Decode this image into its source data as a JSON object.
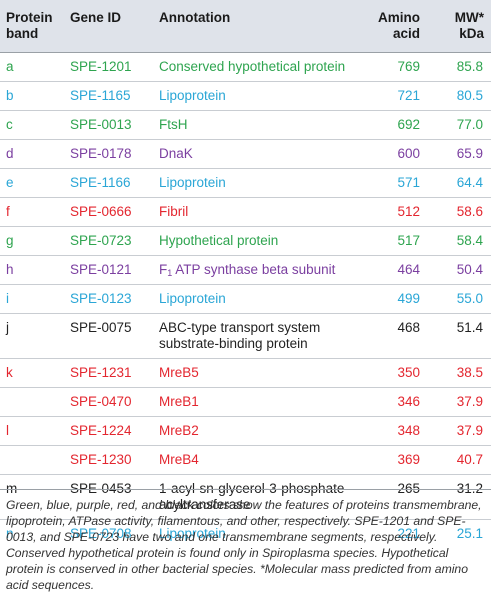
{
  "table": {
    "headers": {
      "band": "Protein band",
      "gene": "Gene ID",
      "annotation": "Annotation",
      "amino": "Amino acid",
      "mw": "MW* kDa"
    },
    "rows": [
      {
        "band": "a",
        "gene": "SPE-1201",
        "annotation": "Conserved hypothetical protein",
        "amino": "769",
        "mw": "85.8",
        "color": "#2ea44f"
      },
      {
        "band": "b",
        "gene": "SPE-1165",
        "annotation": "Lipoprotein",
        "amino": "721",
        "mw": "80.5",
        "color": "#2aa6d6"
      },
      {
        "band": "c",
        "gene": "SPE-0013",
        "annotation": "FtsH",
        "amino": "692",
        "mw": "77.0",
        "color": "#2ea44f"
      },
      {
        "band": "d",
        "gene": "SPE-0178",
        "annotation": "DnaK",
        "amino": "600",
        "mw": "65.9",
        "color": "#7b3fa0"
      },
      {
        "band": "e",
        "gene": "SPE-1166",
        "annotation": "Lipoprotein",
        "amino": "571",
        "mw": "64.4",
        "color": "#2aa6d6"
      },
      {
        "band": "f",
        "gene": "SPE-0666",
        "annotation": "Fibril",
        "amino": "512",
        "mw": "58.6",
        "color": "#e3262f"
      },
      {
        "band": "g",
        "gene": "SPE-0723",
        "annotation": "Hypothetical protein",
        "amino": "517",
        "mw": "58.4",
        "color": "#2ea44f"
      },
      {
        "band": "h",
        "gene": "SPE-0121",
        "annotation_pre": "F",
        "annotation_sub": "1",
        "annotation_post": " ATP synthase beta subunit",
        "amino": "464",
        "mw": "50.4",
        "color": "#7b3fa0"
      },
      {
        "band": "i",
        "gene": "SPE-0123",
        "annotation": "Lipoprotein",
        "amino": "499",
        "mw": "55.0",
        "color": "#2aa6d6"
      },
      {
        "band": "j",
        "gene": "SPE-0075",
        "annotation_line1": "ABC-type transport system",
        "annotation_line2": "substrate-binding protein",
        "amino": "468",
        "mw": "51.4",
        "color": "#222222"
      },
      {
        "band": "k",
        "gene": "SPE-1231",
        "annotation": "MreB5",
        "amino": "350",
        "mw": "38.5",
        "color": "#e3262f"
      },
      {
        "band": "",
        "gene": "SPE-0470",
        "annotation": "MreB1",
        "amino": "346",
        "mw": "37.9",
        "color": "#e3262f"
      },
      {
        "band": "l",
        "gene": "SPE-1224",
        "annotation": "MreB2",
        "amino": "348",
        "mw": "37.9",
        "color": "#e3262f"
      },
      {
        "band": "",
        "gene": "SPE-1230",
        "annotation": "MreB4",
        "amino": "369",
        "mw": "40.7",
        "color": "#e3262f"
      },
      {
        "band": "m",
        "gene": "SPE-0453",
        "annotation_line1": "1-acyl-sn-glycerol-3-phosphate",
        "annotation_line2": "acyltransferase",
        "amino": "265",
        "mw": "31.2",
        "color": "#222222"
      },
      {
        "band": "n",
        "gene": "SPE-0708",
        "annotation": "Lipoprotein",
        "amino": "221",
        "mw": "25.1",
        "color": "#2aa6d6"
      }
    ]
  },
  "footnote": "Green, blue, purple, red, and black colors show the features of proteins transmembrane, lipoprotein, ATPase activity, filamentous, and other, respectively. SPE-1201 and SPE-0013, and SPE-0723 have two and one transmembrane segments, respectively. Conserved hypothetical protein is found only in Spiroplasma species. Hypothetical protein is conserved in other bacterial species. *Molecular mass predicted from amino acid sequences."
}
